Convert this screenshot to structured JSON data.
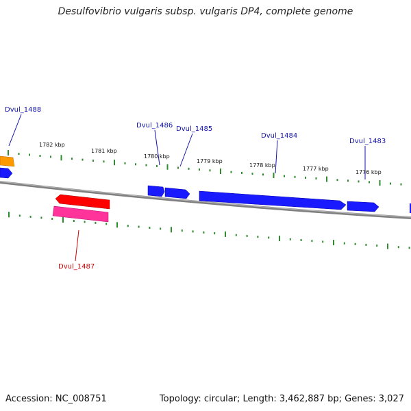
{
  "title": "Desulfovibrio vulgaris subsp. vulgaris DP4, complete genome",
  "footer": {
    "accession": "Accession: NC_008751",
    "summary": "Topology: circular; Length: 3,462,887 bp; Genes: 3,027"
  },
  "colors": {
    "forward_gene": "#1a1aff",
    "reverse_gene": "#ff0000",
    "reverse_gene_alt": "#ff3399",
    "other_gene": "#ff9900",
    "backbone": "#808080",
    "tick": "#2e8b2e",
    "forward_label": "#1111aa",
    "reverse_label": "#cc0000"
  },
  "gene_labels": [
    {
      "name": "Dvul_1488",
      "strand": "forward"
    },
    {
      "name": "Dvul_1486",
      "strand": "forward"
    },
    {
      "name": "Dvul_1485",
      "strand": "forward"
    },
    {
      "name": "Dvul_1484",
      "strand": "forward"
    },
    {
      "name": "Dvul_1483",
      "strand": "forward"
    },
    {
      "name": "Dvul_1487",
      "strand": "reverse"
    }
  ],
  "ruler_labels": [
    "1782 kbp",
    "1781 kbp",
    "1780 kbp",
    "1779 kbp",
    "1778 kbp",
    "1777 kbp",
    "1776 kbp"
  ]
}
